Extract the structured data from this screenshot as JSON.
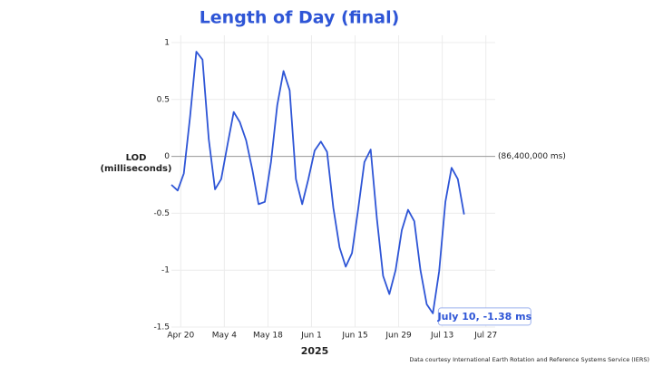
{
  "chart_data": {
    "type": "line",
    "title": "Length of Day (final)",
    "y_label": [
      "LOD",
      "(milliseconds)"
    ],
    "x_label": "2025",
    "zero_line_label": "(86,400,000 ms)",
    "source": "Data courtesy International Earth Rotation and Reference Systems Service (IERS)",
    "annotation": {
      "text": "July 10, -1.38 ms",
      "x": "2025-07-10",
      "y": -1.38
    },
    "x": [
      "2025-04-17",
      "2025-04-19",
      "2025-04-21",
      "2025-04-23",
      "2025-04-25",
      "2025-04-27",
      "2025-04-29",
      "2025-05-01",
      "2025-05-03",
      "2025-05-05",
      "2025-05-07",
      "2025-05-09",
      "2025-05-11",
      "2025-05-13",
      "2025-05-15",
      "2025-05-17",
      "2025-05-19",
      "2025-05-21",
      "2025-05-23",
      "2025-05-25",
      "2025-05-27",
      "2025-05-29",
      "2025-05-31",
      "2025-06-02",
      "2025-06-04",
      "2025-06-06",
      "2025-06-08",
      "2025-06-10",
      "2025-06-12",
      "2025-06-14",
      "2025-06-16",
      "2025-06-18",
      "2025-06-20",
      "2025-06-22",
      "2025-06-24",
      "2025-06-26",
      "2025-06-28",
      "2025-06-30",
      "2025-07-02",
      "2025-07-04",
      "2025-07-06",
      "2025-07-08",
      "2025-07-10",
      "2025-07-12",
      "2025-07-14",
      "2025-07-16",
      "2025-07-18",
      "2025-07-20"
    ],
    "series": [
      {
        "name": "LOD",
        "color": "#2e55d6",
        "values": [
          -0.25,
          -0.3,
          -0.15,
          0.35,
          0.92,
          0.85,
          0.15,
          -0.29,
          -0.2,
          0.1,
          0.39,
          0.3,
          0.14,
          -0.12,
          -0.42,
          -0.4,
          -0.05,
          0.45,
          0.75,
          0.58,
          -0.2,
          -0.42,
          -0.2,
          0.05,
          0.13,
          0.04,
          -0.45,
          -0.8,
          -0.97,
          -0.85,
          -0.46,
          -0.05,
          0.06,
          -0.55,
          -1.05,
          -1.21,
          -1.0,
          -0.65,
          -0.47,
          -0.57,
          -1.0,
          -1.3,
          -1.38,
          -1.01,
          -0.4,
          -0.1,
          -0.2,
          -0.51
        ]
      }
    ],
    "xlim": [
      "2025-04-17",
      "2025-07-30"
    ],
    "xticks": [
      {
        "value": "2025-04-20",
        "label": "Apr 20"
      },
      {
        "value": "2025-05-04",
        "label": "May 4"
      },
      {
        "value": "2025-05-18",
        "label": "May 18"
      },
      {
        "value": "2025-06-01",
        "label": "Jun 1"
      },
      {
        "value": "2025-06-15",
        "label": "Jun 15"
      },
      {
        "value": "2025-06-29",
        "label": "Jun 29"
      },
      {
        "value": "2025-07-13",
        "label": "Jul 13"
      },
      {
        "value": "2025-07-27",
        "label": "Jul 27"
      }
    ],
    "ylim": [
      -1.5,
      1
    ],
    "yticks": [
      1,
      0.5,
      0,
      -0.5,
      -1,
      -1.5
    ],
    "grid": true
  }
}
